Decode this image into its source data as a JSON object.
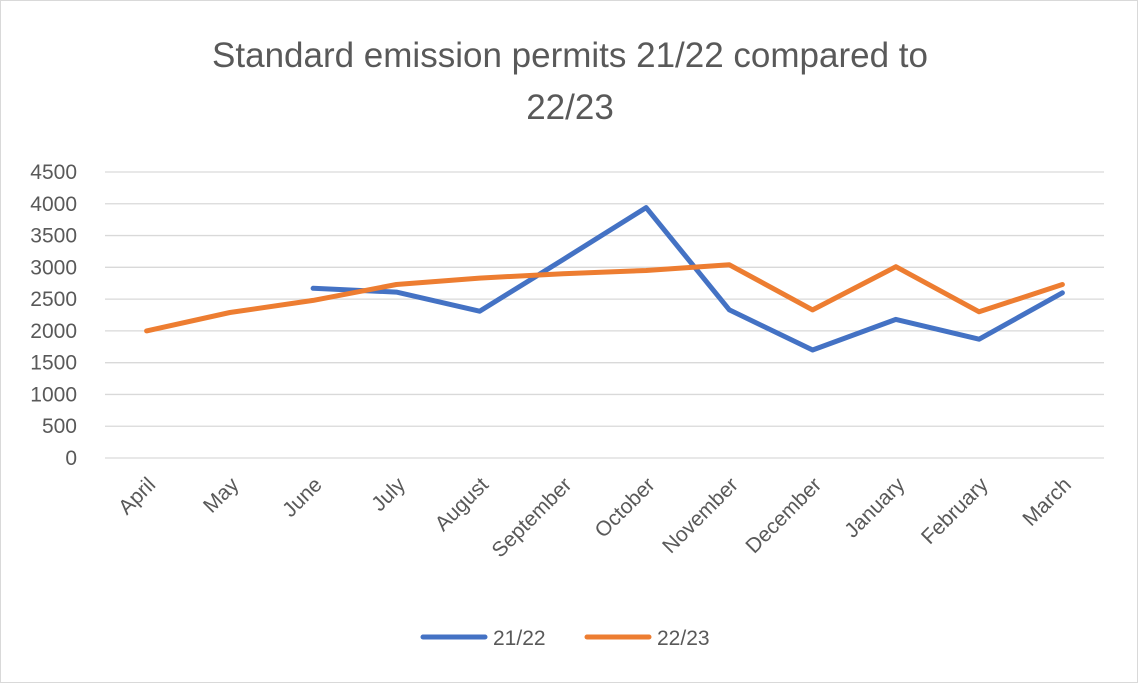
{
  "chart_data": {
    "type": "line",
    "title_lines": [
      "Standard emission permits 21/22 compared to",
      "22/23"
    ],
    "categories": [
      "April",
      "May",
      "June",
      "July",
      "August",
      "September",
      "October",
      "November",
      "December",
      "January",
      "February",
      "March"
    ],
    "ylim": [
      0,
      4500
    ],
    "yticks": [
      0,
      500,
      1000,
      1500,
      2000,
      2500,
      3000,
      3500,
      4000,
      4500
    ],
    "grid": true,
    "legend_position": "bottom",
    "series": [
      {
        "name": "21/22",
        "color": "#4472C4",
        "values": [
          null,
          null,
          2670,
          2610,
          2310,
          3120,
          3940,
          2330,
          1700,
          2180,
          1870,
          2600
        ]
      },
      {
        "name": "22/23",
        "color": "#ED7D31",
        "values": [
          2000,
          2290,
          2480,
          2730,
          2830,
          2900,
          2950,
          3040,
          2330,
          3010,
          2300,
          2730
        ]
      }
    ]
  }
}
